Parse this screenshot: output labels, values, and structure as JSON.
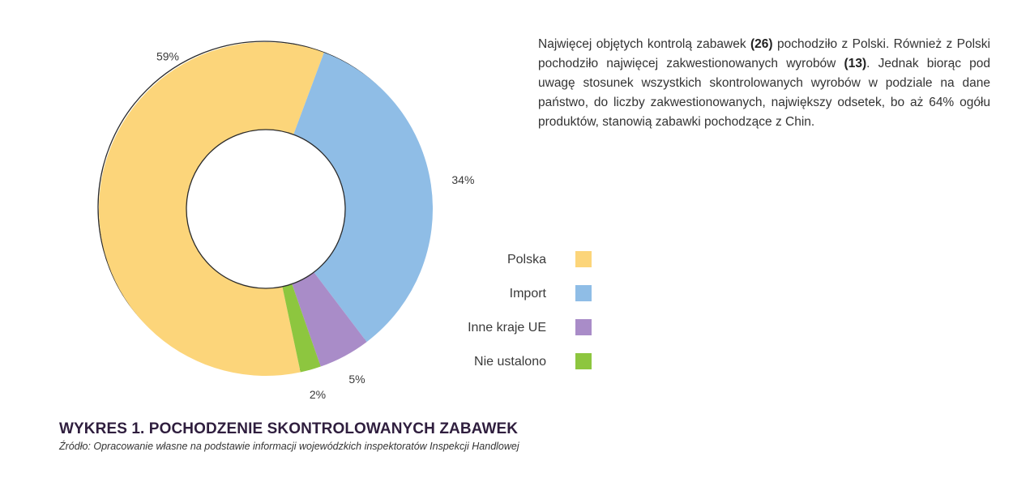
{
  "chart_data": {
    "type": "pie",
    "style": "donut",
    "title": "",
    "series": [
      {
        "name": "Polska",
        "value": 59,
        "label": "59%",
        "color": "#FCD57A"
      },
      {
        "name": "Import",
        "value": 34,
        "label": "34%",
        "color": "#8FBDE6"
      },
      {
        "name": "Inne kraje UE",
        "value": 5,
        "label": "5%",
        "color": "#A98CC8"
      },
      {
        "name": "Nie ustalono",
        "value": 2,
        "label": "2%",
        "color": "#8DC63F"
      }
    ],
    "legend_placement": "right"
  },
  "description": {
    "p1": "Najwięcej objętych kontrolą zabawek ",
    "b1": "(26)",
    "p2": " pochodziło z Polski. Również z Polski pochodziło najwięcej zakwestionowanych wyrobów ",
    "b2": "(13)",
    "p3": ". Jednak biorąc pod uwagę stosunek wszystkich skontrolowanych wyrobów w podziale na dane państwo, do liczby zakwestionowanych, największy odsetek, bo aż 64% ogółu produktów, stanowią zabawki pochodzące z Chin."
  },
  "figure": {
    "title": "WYKRES 1. POCHODZENIE SKONTROLOWANYCH ZABAWEK",
    "source": "Źródło: Opracowanie własne na podstawie informacji wojewódzkich inspektoratów Inspekcji Handlowej"
  }
}
